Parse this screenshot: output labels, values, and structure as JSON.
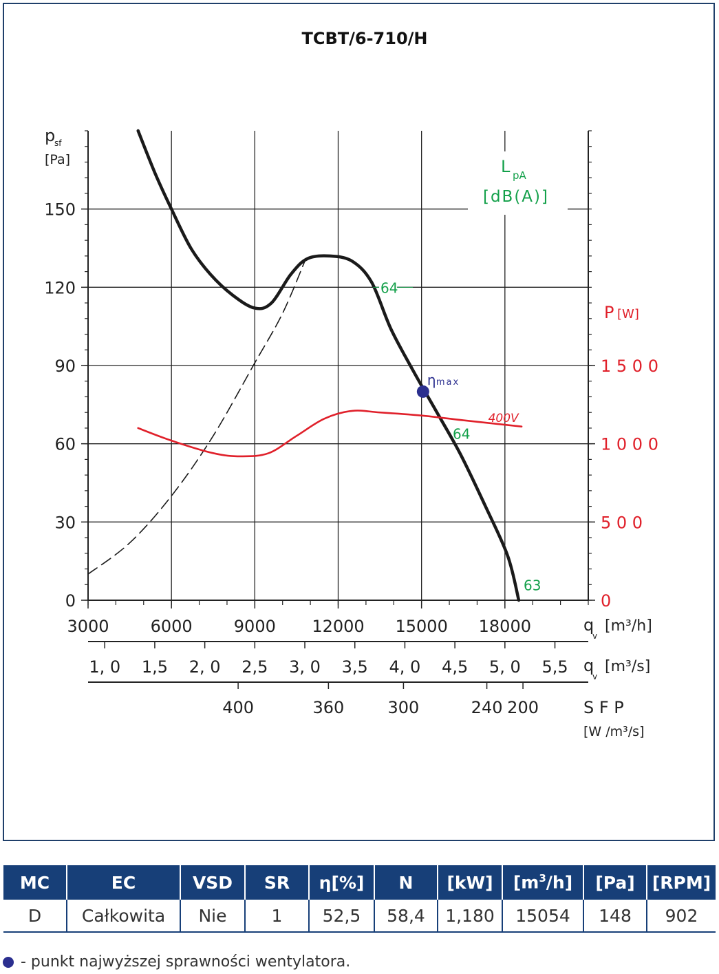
{
  "chart_data": {
    "type": "line",
    "title": "TCBT/6-710/H",
    "x_axis": {
      "label": "q",
      "label_sub": "v",
      "unit": "[m³/h]",
      "range": [
        3000,
        21000
      ],
      "ticks": [
        "3000",
        "6000",
        "9000",
        "12000",
        "15000",
        "18000"
      ]
    },
    "x_axis_m3s": {
      "label": "q",
      "label_sub": "v",
      "unit": "[m³/s]",
      "ticks": [
        "1, 0",
        "1,5",
        "2, 0",
        "2,5",
        "3, 0",
        "3,5",
        "4, 0",
        "4,5",
        "5, 0",
        "5,5"
      ],
      "values": [
        1.0,
        1.5,
        2.0,
        2.5,
        3.0,
        3.5,
        4.0,
        4.5,
        5.0,
        5.5
      ]
    },
    "x_axis_sfp": {
      "label": "S F P",
      "unit": "[W /m³/s]",
      "ticks": [
        "400",
        "360",
        "300",
        "240",
        "200"
      ],
      "positions_qv": [
        8400,
        11650,
        14350,
        17350,
        18650
      ]
    },
    "y_axis": {
      "label": "p",
      "label_sub": "sf",
      "unit": "[Pa]",
      "range": [
        0,
        180
      ],
      "ticks": [
        "0",
        "30",
        "60",
        "90",
        "120",
        "150"
      ]
    },
    "y_axis_right": {
      "label": "P",
      "unit": "[W]",
      "range": [
        0,
        3000
      ],
      "ticks": [
        "0",
        "5 0 0",
        "1 0 0 0",
        "1 5 0 0"
      ]
    },
    "lpa_label": {
      "name": "L",
      "sub": "pA",
      "unit": "[dB(A)]"
    },
    "grid": true,
    "series": [
      {
        "name": "",
        "axis": "left",
        "style": "solid",
        "color": "#1a1a1a",
        "x": [
          4800,
          5400,
          6000,
          6700,
          7400,
          8200,
          9000,
          9600,
          10300,
          10900,
          11700,
          12500,
          13200,
          13900,
          14700,
          15500,
          16400,
          17300,
          18100,
          18500
        ],
        "y": [
          180,
          164,
          150,
          135,
          125,
          117,
          112,
          114,
          125,
          131,
          132,
          130,
          122,
          104,
          88,
          73,
          56,
          36,
          17,
          0
        ]
      },
      {
        "name": "",
        "axis": "left",
        "style": "dashed",
        "color": "#1a1a1a",
        "x": [
          3000,
          4500,
          6000,
          7500,
          9000,
          10000,
          10800
        ],
        "y": [
          10,
          22,
          40,
          63,
          91,
          110,
          130
        ]
      },
      {
        "name": "400V",
        "axis": "right",
        "style": "solid",
        "color": "#e0202a",
        "x": [
          4800,
          6000,
          7500,
          8500,
          9500,
          10500,
          11500,
          12500,
          13500,
          15000,
          16500,
          18600
        ],
        "y": [
          1100,
          1020,
          940,
          920,
          940,
          1050,
          1160,
          1210,
          1200,
          1180,
          1150,
          1110
        ]
      }
    ],
    "annotations": [
      {
        "text": "64",
        "x": 13400,
        "y": 120,
        "color": "#13a04a"
      },
      {
        "text": "64",
        "x": 16000,
        "y": 64,
        "color": "#13a04a"
      },
      {
        "text": "63",
        "x": 18550,
        "y": 6,
        "color": "#13a04a"
      },
      {
        "text": "400V",
        "x": 17400,
        "y": 1140,
        "axis": "right",
        "color": "#e0202a"
      }
    ],
    "efficiency_point": {
      "label": "η",
      "label_sub": "max",
      "x": 15054,
      "y": 80,
      "color": "#2b2f8f"
    }
  },
  "table": {
    "headers": [
      "MC",
      "EC",
      "VSD",
      "SR",
      "η[%]",
      "N",
      "[kW]",
      "[m³/h]",
      "[Pa]",
      "[RPM]"
    ],
    "row": [
      "D",
      "Całkowita",
      "Nie",
      "1",
      "52,5",
      "58,4",
      "1,180",
      "15054",
      "148",
      "902"
    ]
  },
  "footnote": "- punkt najwyższej sprawności wentylatora."
}
